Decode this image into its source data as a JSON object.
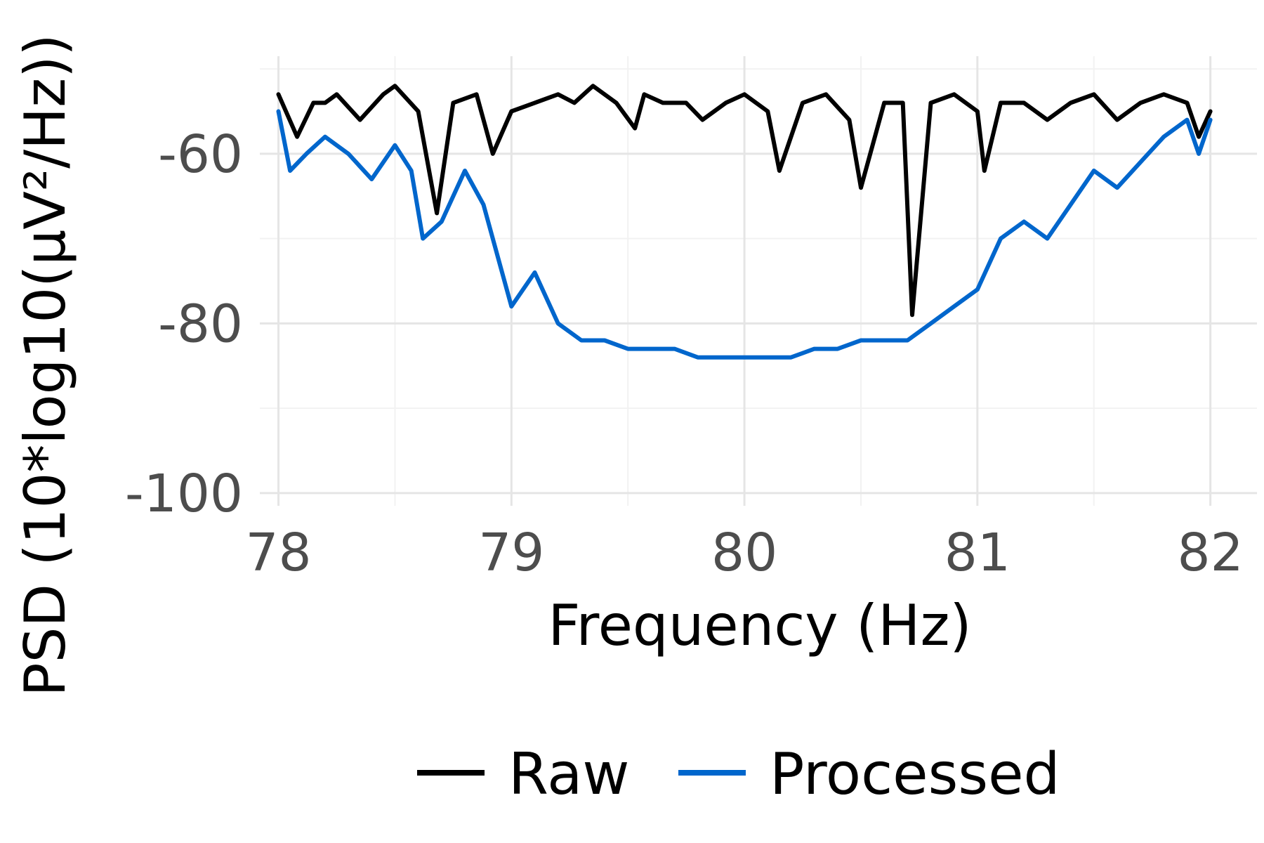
{
  "chart_data": {
    "type": "line",
    "xlabel": "Frequency (Hz)",
    "ylabel": "PSD (10*log10(µV²/Hz))",
    "xlim": [
      77.92,
      82.2
    ],
    "ylim": [
      -101.5,
      -48.5
    ],
    "x_ticks": [
      78,
      79,
      80,
      81,
      82
    ],
    "x_tick_labels": [
      "78",
      "79",
      "80",
      "81",
      "82"
    ],
    "y_ticks": [
      -60,
      -80,
      -100
    ],
    "y_tick_labels": [
      "-60",
      "-80",
      "-100"
    ],
    "grid": true,
    "legend_position": "bottom",
    "legend_entries": [
      "Raw",
      "Processed"
    ],
    "series": [
      {
        "name": "Raw",
        "color": "#000000",
        "x": [
          78.0,
          78.08,
          78.15,
          78.2,
          78.25,
          78.35,
          78.45,
          78.5,
          78.6,
          78.68,
          78.75,
          78.85,
          78.92,
          79.0,
          79.1,
          79.2,
          79.27,
          79.35,
          79.45,
          79.53,
          79.57,
          79.65,
          79.75,
          79.82,
          79.92,
          80.0,
          80.1,
          80.15,
          80.25,
          80.35,
          80.45,
          80.5,
          80.6,
          80.68,
          80.72,
          80.8,
          80.9,
          81.0,
          81.03,
          81.1,
          81.2,
          81.3,
          81.4,
          81.5,
          81.6,
          81.7,
          81.8,
          81.9,
          81.95,
          82.0
        ],
        "y": [
          -53,
          -58,
          -54,
          -54,
          -53,
          -56,
          -53,
          -52,
          -55,
          -67,
          -54,
          -53,
          -60,
          -55,
          -54,
          -53,
          -54,
          -52,
          -54,
          -57,
          -53,
          -54,
          -54,
          -56,
          -54,
          -53,
          -55,
          -62,
          -54,
          -53,
          -56,
          -64,
          -54,
          -54,
          -79,
          -54,
          -53,
          -55,
          -62,
          -54,
          -54,
          -56,
          -54,
          -53,
          -56,
          -54,
          -53,
          -54,
          -58,
          -55
        ]
      },
      {
        "name": "Processed",
        "color": "#0066cc",
        "x": [
          78.0,
          78.05,
          78.12,
          78.2,
          78.3,
          78.4,
          78.5,
          78.57,
          78.62,
          78.7,
          78.8,
          78.88,
          78.94,
          79.0,
          79.1,
          79.2,
          79.3,
          79.4,
          79.5,
          79.6,
          79.7,
          79.8,
          79.9,
          80.0,
          80.1,
          80.2,
          80.3,
          80.4,
          80.5,
          80.6,
          80.7,
          80.8,
          80.9,
          81.0,
          81.1,
          81.2,
          81.3,
          81.4,
          81.5,
          81.6,
          81.7,
          81.8,
          81.9,
          81.95,
          82.0
        ],
        "y": [
          -55,
          -62,
          -60,
          -58,
          -60,
          -63,
          -59,
          -62,
          -70,
          -68,
          -62,
          -66,
          -72,
          -78,
          -74,
          -80,
          -82,
          -82,
          -83,
          -83,
          -83,
          -84,
          -84,
          -84,
          -84,
          -84,
          -83,
          -83,
          -82,
          -82,
          -82,
          -80,
          -78,
          -76,
          -70,
          -68,
          -70,
          -66,
          -62,
          -64,
          -61,
          -58,
          -56,
          -60,
          -56
        ]
      }
    ]
  }
}
